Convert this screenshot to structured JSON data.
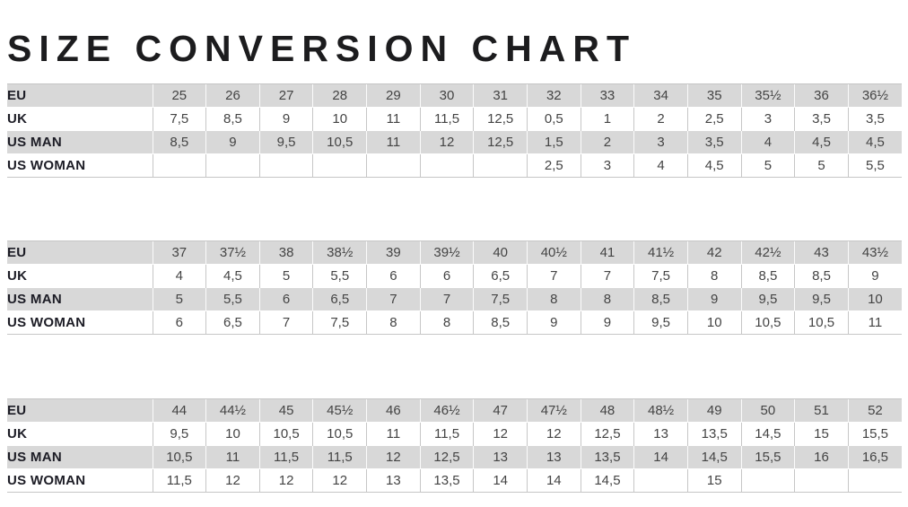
{
  "page": {
    "title": "SIZE CONVERSION CHART"
  },
  "colors": {
    "row_shade": "#d8d8d8",
    "grid_line": "#c6c6c6",
    "label_text": "#1c1c25",
    "value_text": "#444444",
    "title_text": "#1c1c1e"
  },
  "chart_data": {
    "type": "table",
    "title": "SIZE CONVERSION CHART",
    "row_labels": [
      "EU",
      "UK",
      "US MAN",
      "US WOMAN"
    ],
    "tables": [
      {
        "rows": [
          {
            "label": "EU",
            "values": [
              "25",
              "26",
              "27",
              "28",
              "29",
              "30",
              "31",
              "32",
              "33",
              "34",
              "35",
              "35½",
              "36",
              "36½"
            ]
          },
          {
            "label": "UK",
            "values": [
              "7,5",
              "8,5",
              "9",
              "10",
              "11",
              "11,5",
              "12,5",
              "0,5",
              "1",
              "2",
              "2,5",
              "3",
              "3,5",
              "3,5"
            ]
          },
          {
            "label": "US MAN",
            "values": [
              "8,5",
              "9",
              "9,5",
              "10,5",
              "11",
              "12",
              "12,5",
              "1,5",
              "2",
              "3",
              "3,5",
              "4",
              "4,5",
              "4,5"
            ]
          },
          {
            "label": "US WOMAN",
            "values": [
              "",
              "",
              "",
              "",
              "",
              "",
              "",
              "2,5",
              "3",
              "4",
              "4,5",
              "5",
              "5",
              "5,5"
            ]
          }
        ]
      },
      {
        "rows": [
          {
            "label": "EU",
            "values": [
              "37",
              "37½",
              "38",
              "38½",
              "39",
              "39½",
              "40",
              "40½",
              "41",
              "41½",
              "42",
              "42½",
              "43",
              "43½"
            ]
          },
          {
            "label": "UK",
            "values": [
              "4",
              "4,5",
              "5",
              "5,5",
              "6",
              "6",
              "6,5",
              "7",
              "7",
              "7,5",
              "8",
              "8,5",
              "8,5",
              "9"
            ]
          },
          {
            "label": "US MAN",
            "values": [
              "5",
              "5,5",
              "6",
              "6,5",
              "7",
              "7",
              "7,5",
              "8",
              "8",
              "8,5",
              "9",
              "9,5",
              "9,5",
              "10"
            ]
          },
          {
            "label": "US WOMAN",
            "values": [
              "6",
              "6,5",
              "7",
              "7,5",
              "8",
              "8",
              "8,5",
              "9",
              "9",
              "9,5",
              "10",
              "10,5",
              "10,5",
              "11"
            ]
          }
        ]
      },
      {
        "rows": [
          {
            "label": "EU",
            "values": [
              "44",
              "44½",
              "45",
              "45½",
              "46",
              "46½",
              "47",
              "47½",
              "48",
              "48½",
              "49",
              "50",
              "51",
              "52"
            ]
          },
          {
            "label": "UK",
            "values": [
              "9,5",
              "10",
              "10,5",
              "10,5",
              "11",
              "11,5",
              "12",
              "12",
              "12,5",
              "13",
              "13,5",
              "14,5",
              "15",
              "15,5"
            ]
          },
          {
            "label": "US MAN",
            "values": [
              "10,5",
              "11",
              "11,5",
              "11,5",
              "12",
              "12,5",
              "13",
              "13",
              "13,5",
              "14",
              "14,5",
              "15,5",
              "16",
              "16,5"
            ]
          },
          {
            "label": "US WOMAN",
            "values": [
              "11,5",
              "12",
              "12",
              "12",
              "13",
              "13,5",
              "14",
              "14",
              "14,5",
              "",
              "15",
              "",
              "",
              ""
            ]
          }
        ]
      }
    ]
  }
}
